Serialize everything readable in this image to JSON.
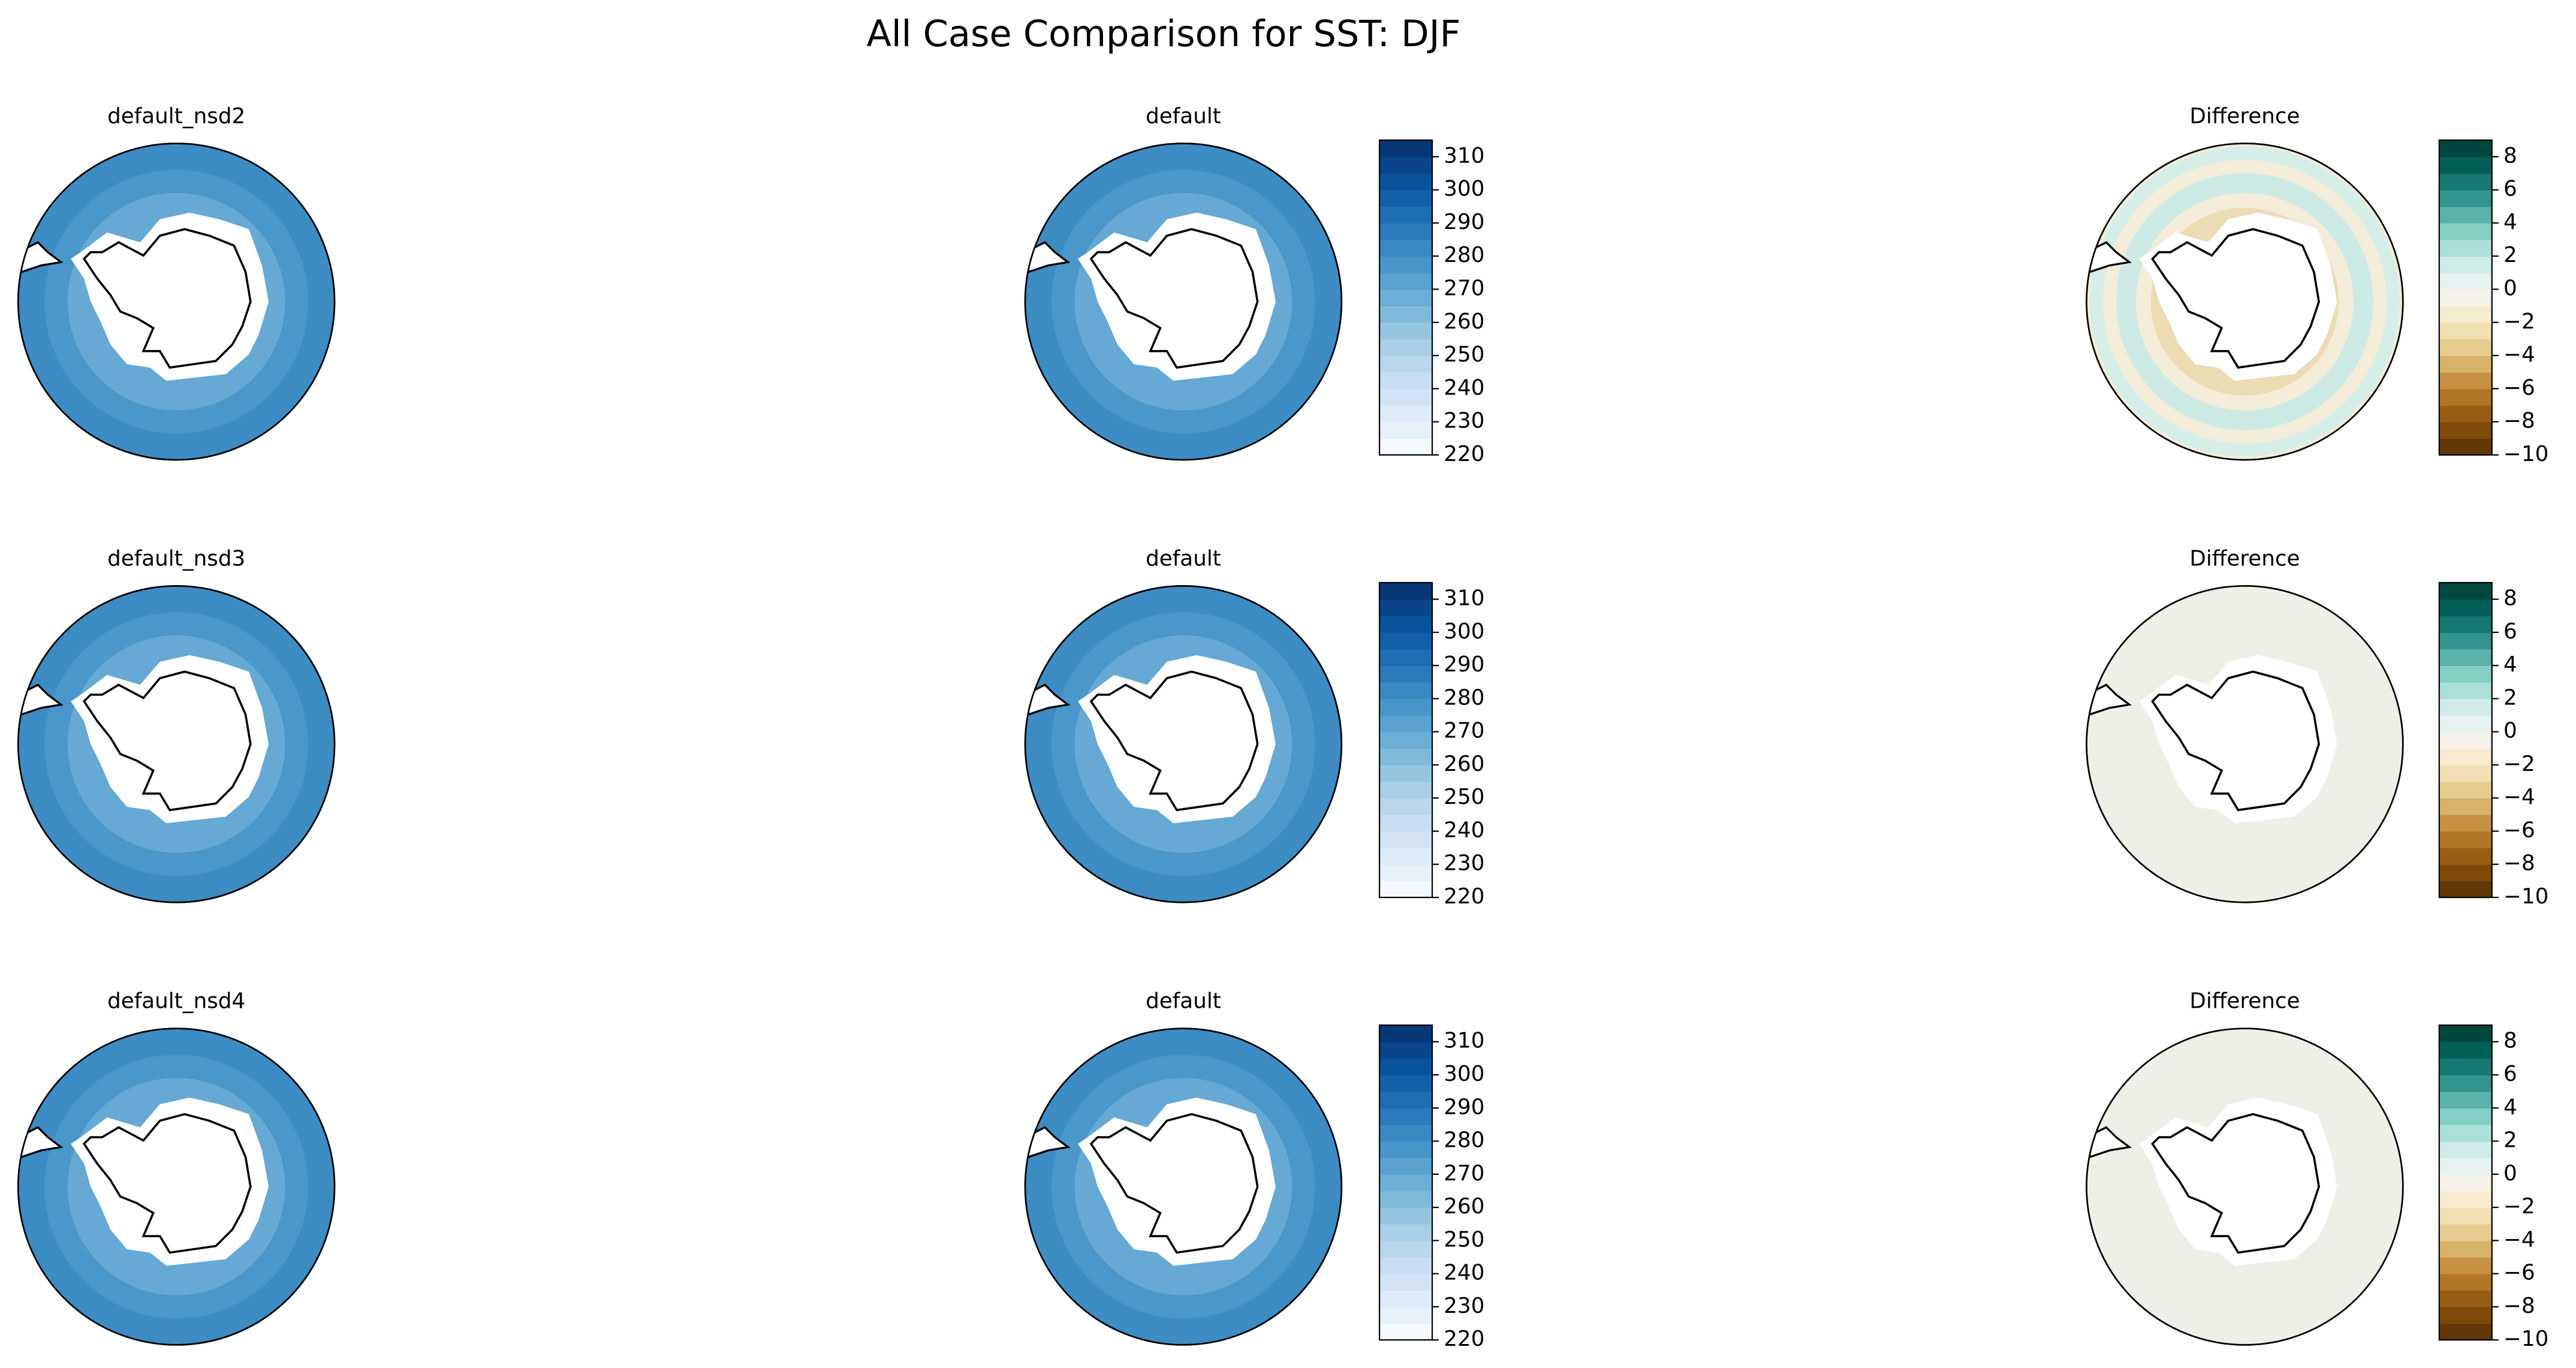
{
  "title": "All Case Comparison for SST: DJF",
  "panels": [
    [
      "default_nsd2",
      "default",
      "Difference"
    ],
    [
      "default_nsd3",
      "default",
      "Difference"
    ],
    [
      "default_nsd4",
      "default",
      "Difference"
    ]
  ],
  "colorbars": {
    "sst": {
      "lim": [
        220,
        315
      ],
      "ticks": [
        220,
        230,
        240,
        250,
        260,
        270,
        280,
        290,
        300,
        310
      ]
    },
    "difference": {
      "lim": [
        -10,
        9
      ],
      "ticks": [
        {
          "value": -10,
          "label": "−10"
        },
        {
          "value": -8,
          "label": "−8"
        },
        {
          "value": -6,
          "label": "−6"
        },
        {
          "value": -4,
          "label": "−4"
        },
        {
          "value": -2,
          "label": "−2"
        },
        0,
        2,
        4,
        6,
        8
      ]
    }
  }
}
